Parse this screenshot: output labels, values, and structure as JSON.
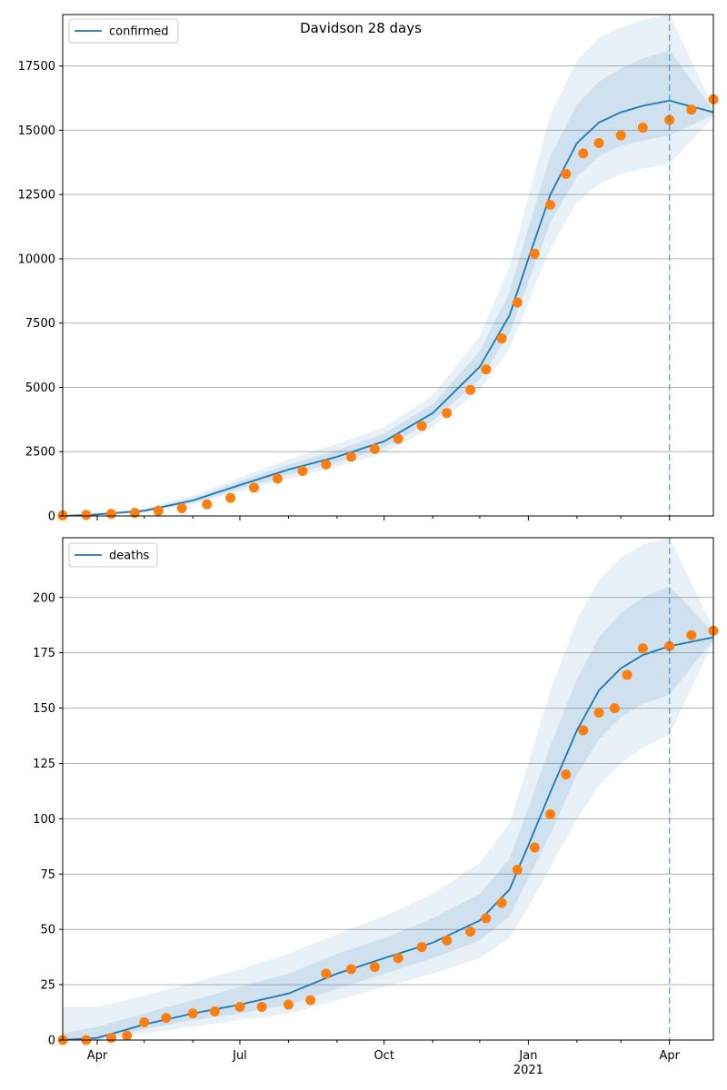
{
  "figure_title": "Davidson 28 days",
  "colors": {
    "model": "#1f77b4",
    "observed": "#ff7f0e",
    "band": "#1f77b4",
    "grid": "#b0b0b0",
    "forecast_line": "#1f77b4"
  },
  "x_axis": {
    "range": [
      "2020-03-10",
      "2021-04-29"
    ],
    "ticks": [
      {
        "date": "2020-04-01",
        "label": "Apr",
        "sublabel": ""
      },
      {
        "date": "2020-07-01",
        "label": "Jul",
        "sublabel": ""
      },
      {
        "date": "2020-10-01",
        "label": "Oct",
        "sublabel": ""
      },
      {
        "date": "2021-01-01",
        "label": "Jan",
        "sublabel": "2021"
      },
      {
        "date": "2021-04-01",
        "label": "Apr",
        "sublabel": ""
      }
    ],
    "minor_ticks": [
      "2020-05-01",
      "2020-06-01",
      "2020-08-01",
      "2020-09-01",
      "2020-11-01",
      "2020-12-01",
      "2021-02-01",
      "2021-03-01"
    ]
  },
  "forecast_start": "2021-04-01",
  "chart_data": [
    {
      "type": "line",
      "legend": "confirmed",
      "legend_position": "top-left",
      "grid": "horizontal",
      "ylim": [
        0,
        19500
      ],
      "yticks": [
        0,
        2500,
        5000,
        7500,
        10000,
        12500,
        15000,
        17500
      ],
      "model": {
        "name": "confirmed",
        "x": [
          "2020-03-10",
          "2020-04-01",
          "2020-05-01",
          "2020-06-01",
          "2020-07-01",
          "2020-08-01",
          "2020-09-01",
          "2020-10-01",
          "2020-11-01",
          "2020-12-01",
          "2020-12-20",
          "2021-01-01",
          "2021-01-15",
          "2021-02-01",
          "2021-02-15",
          "2021-03-01",
          "2021-03-15",
          "2021-04-01",
          "2021-04-29"
        ],
        "y": [
          0,
          60,
          200,
          600,
          1200,
          1800,
          2300,
          2900,
          4000,
          5800,
          7800,
          10000,
          12500,
          14500,
          15300,
          15700,
          15950,
          16150,
          15700
        ],
        "lower_outer": [
          0,
          30,
          130,
          450,
          950,
          1450,
          1900,
          2450,
          3450,
          4900,
          6500,
          8300,
          10400,
          12200,
          12900,
          13300,
          13500,
          13700,
          15500
        ],
        "lower_mid": [
          0,
          40,
          160,
          510,
          1050,
          1600,
          2080,
          2650,
          3700,
          5300,
          7100,
          9100,
          11400,
          13200,
          14000,
          14400,
          14600,
          14800,
          15600
        ],
        "upper_mid": [
          0,
          80,
          240,
          700,
          1350,
          2000,
          2550,
          3200,
          4350,
          6400,
          8700,
          11200,
          14000,
          16000,
          16900,
          17400,
          17800,
          18100,
          15800
        ],
        "upper_outer": [
          0,
          110,
          290,
          800,
          1500,
          2200,
          2800,
          3450,
          4700,
          7000,
          9700,
          12400,
          15600,
          17700,
          18600,
          19000,
          19300,
          19500,
          15900
        ]
      },
      "observed": {
        "name": "confirmed",
        "x": [
          "2020-03-10",
          "2020-03-25",
          "2020-04-10",
          "2020-04-25",
          "2020-05-10",
          "2020-05-25",
          "2020-06-10",
          "2020-06-25",
          "2020-07-10",
          "2020-07-25",
          "2020-08-10",
          "2020-08-25",
          "2020-09-10",
          "2020-09-25",
          "2020-10-10",
          "2020-10-25",
          "2020-11-10",
          "2020-11-25",
          "2020-12-05",
          "2020-12-15",
          "2020-12-25",
          "2021-01-05",
          "2021-01-15",
          "2021-01-25",
          "2021-02-05",
          "2021-02-15",
          "2021-03-01",
          "2021-03-15",
          "2021-04-01",
          "2021-04-15",
          "2021-04-29"
        ],
        "y": [
          20,
          40,
          80,
          120,
          200,
          300,
          450,
          700,
          1100,
          1450,
          1750,
          2000,
          2300,
          2600,
          3000,
          3500,
          4000,
          4900,
          5700,
          6900,
          8300,
          10200,
          12100,
          13300,
          14100,
          14500,
          14800,
          15100,
          15400,
          15800,
          16200
        ]
      }
    },
    {
      "type": "line",
      "legend": "deaths",
      "legend_position": "top-left",
      "grid": "horizontal",
      "ylim": [
        0,
        227
      ],
      "yticks": [
        0,
        25,
        50,
        75,
        100,
        125,
        150,
        175,
        200
      ],
      "model": {
        "name": "deaths",
        "x": [
          "2020-03-10",
          "2020-04-01",
          "2020-05-01",
          "2020-06-01",
          "2020-07-01",
          "2020-08-01",
          "2020-09-01",
          "2020-10-01",
          "2020-11-01",
          "2020-12-01",
          "2020-12-20",
          "2021-01-01",
          "2021-01-15",
          "2021-02-01",
          "2021-02-15",
          "2021-03-01",
          "2021-03-15",
          "2021-04-01",
          "2021-04-29"
        ],
        "y": [
          0,
          1,
          7,
          12,
          16,
          21,
          30,
          37,
          44,
          54,
          68,
          88,
          112,
          140,
          158,
          168,
          174,
          178,
          182
        ],
        "lower_outer": [
          0,
          0,
          3,
          6,
          9,
          12,
          18,
          24,
          30,
          37,
          46,
          60,
          78,
          100,
          115,
          125,
          132,
          138,
          180
        ],
        "lower_mid": [
          0,
          0,
          5,
          9,
          12,
          16,
          23,
          30,
          37,
          45,
          56,
          73,
          93,
          120,
          136,
          146,
          152,
          156,
          181
        ],
        "upper_mid": [
          3,
          6,
          12,
          18,
          24,
          30,
          39,
          46,
          55,
          66,
          82,
          105,
          133,
          163,
          182,
          193,
          200,
          205,
          184
        ],
        "upper_outer": [
          15,
          15,
          20,
          26,
          32,
          39,
          48,
          56,
          66,
          80,
          98,
          125,
          158,
          190,
          208,
          218,
          224,
          227,
          186
        ]
      },
      "observed": {
        "name": "deaths",
        "x": [
          "2020-03-10",
          "2020-03-25",
          "2020-04-10",
          "2020-04-20",
          "2020-05-01",
          "2020-05-15",
          "2020-06-01",
          "2020-06-15",
          "2020-07-01",
          "2020-07-15",
          "2020-08-01",
          "2020-08-15",
          "2020-08-25",
          "2020-09-10",
          "2020-09-25",
          "2020-10-10",
          "2020-10-25",
          "2020-11-10",
          "2020-11-25",
          "2020-12-05",
          "2020-12-15",
          "2020-12-25",
          "2021-01-05",
          "2021-01-15",
          "2021-01-25",
          "2021-02-05",
          "2021-02-15",
          "2021-02-25",
          "2021-03-05",
          "2021-03-15",
          "2021-04-01",
          "2021-04-15",
          "2021-04-29"
        ],
        "y": [
          0,
          0,
          1,
          2,
          8,
          10,
          12,
          13,
          15,
          15,
          16,
          18,
          30,
          32,
          33,
          37,
          42,
          45,
          49,
          55,
          62,
          77,
          87,
          102,
          120,
          140,
          148,
          150,
          165,
          177,
          178,
          183,
          185
        ]
      }
    }
  ]
}
